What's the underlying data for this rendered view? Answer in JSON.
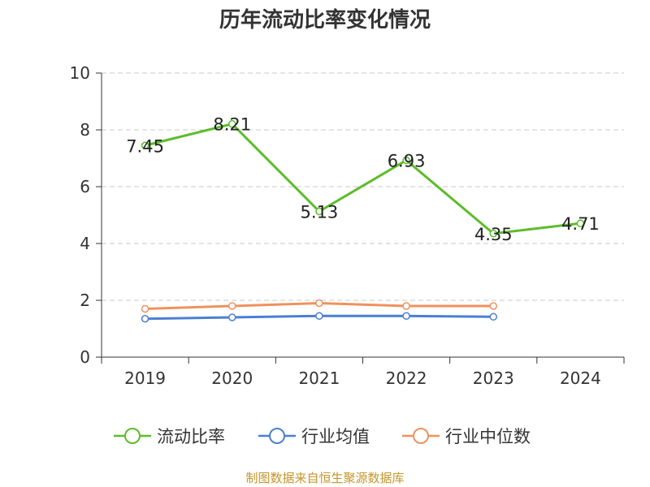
{
  "chart_data": {
    "type": "line",
    "title": "历年流动比率变化情况",
    "categories": [
      "2019",
      "2020",
      "2021",
      "2022",
      "2023",
      "2024"
    ],
    "ylim": [
      0,
      10
    ],
    "yticks": [
      0,
      2,
      4,
      6,
      8,
      10
    ],
    "grid": true,
    "legend_position": "bottom",
    "series": [
      {
        "name": "流动比率",
        "color": "#5cbd2a",
        "values": [
          7.45,
          8.21,
          5.13,
          6.93,
          4.35,
          4.71
        ],
        "labels": [
          "7.45",
          "8.21",
          "5.13",
          "6.93",
          "4.35",
          "4.71"
        ],
        "show_labels": true
      },
      {
        "name": "行业均值",
        "color": "#4a7fd4",
        "values": [
          1.35,
          1.4,
          1.45,
          1.45,
          1.42,
          null
        ],
        "show_labels": false
      },
      {
        "name": "行业中位数",
        "color": "#f0915e",
        "values": [
          1.7,
          1.8,
          1.9,
          1.8,
          1.8,
          null
        ],
        "show_labels": false
      }
    ]
  },
  "source": "制图数据来自恒生聚源数据库"
}
